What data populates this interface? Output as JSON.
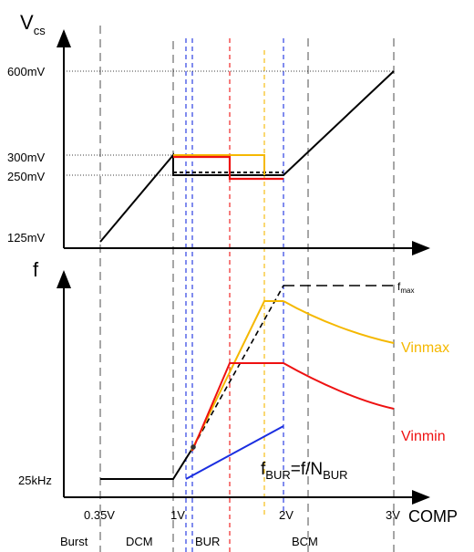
{
  "top_plot": {
    "y_axis_label": "V",
    "y_axis_label_sub": "cs",
    "ticks": {
      "v600": "600mV",
      "v300": "300mV",
      "v250": "250mV",
      "v125": "125mV"
    }
  },
  "bottom_plot": {
    "y_axis_label": "f",
    "fmax_label": "f",
    "fmax_sub": "max",
    "f25_label": "25kHz",
    "vinmax_label": "Vinmax",
    "vinmin_label": "Vinmin",
    "fbur": {
      "f": "f",
      "bur1": "BUR",
      "eq": "=f/N",
      "bur2": "BUR"
    }
  },
  "x_axis": {
    "label": "COMP",
    "ticks": {
      "t035": "0.35V",
      "t1": "1V",
      "t2": "2V",
      "t3": "3V"
    }
  },
  "modes": {
    "burst": "Burst",
    "dcm": "DCM",
    "bur": "BUR",
    "bcm": "BCM"
  },
  "colors": {
    "black": "#000000",
    "orange": "#f5b800",
    "red": "#ee1111",
    "blue": "#1a2ee0",
    "gray": "#777777"
  }
}
